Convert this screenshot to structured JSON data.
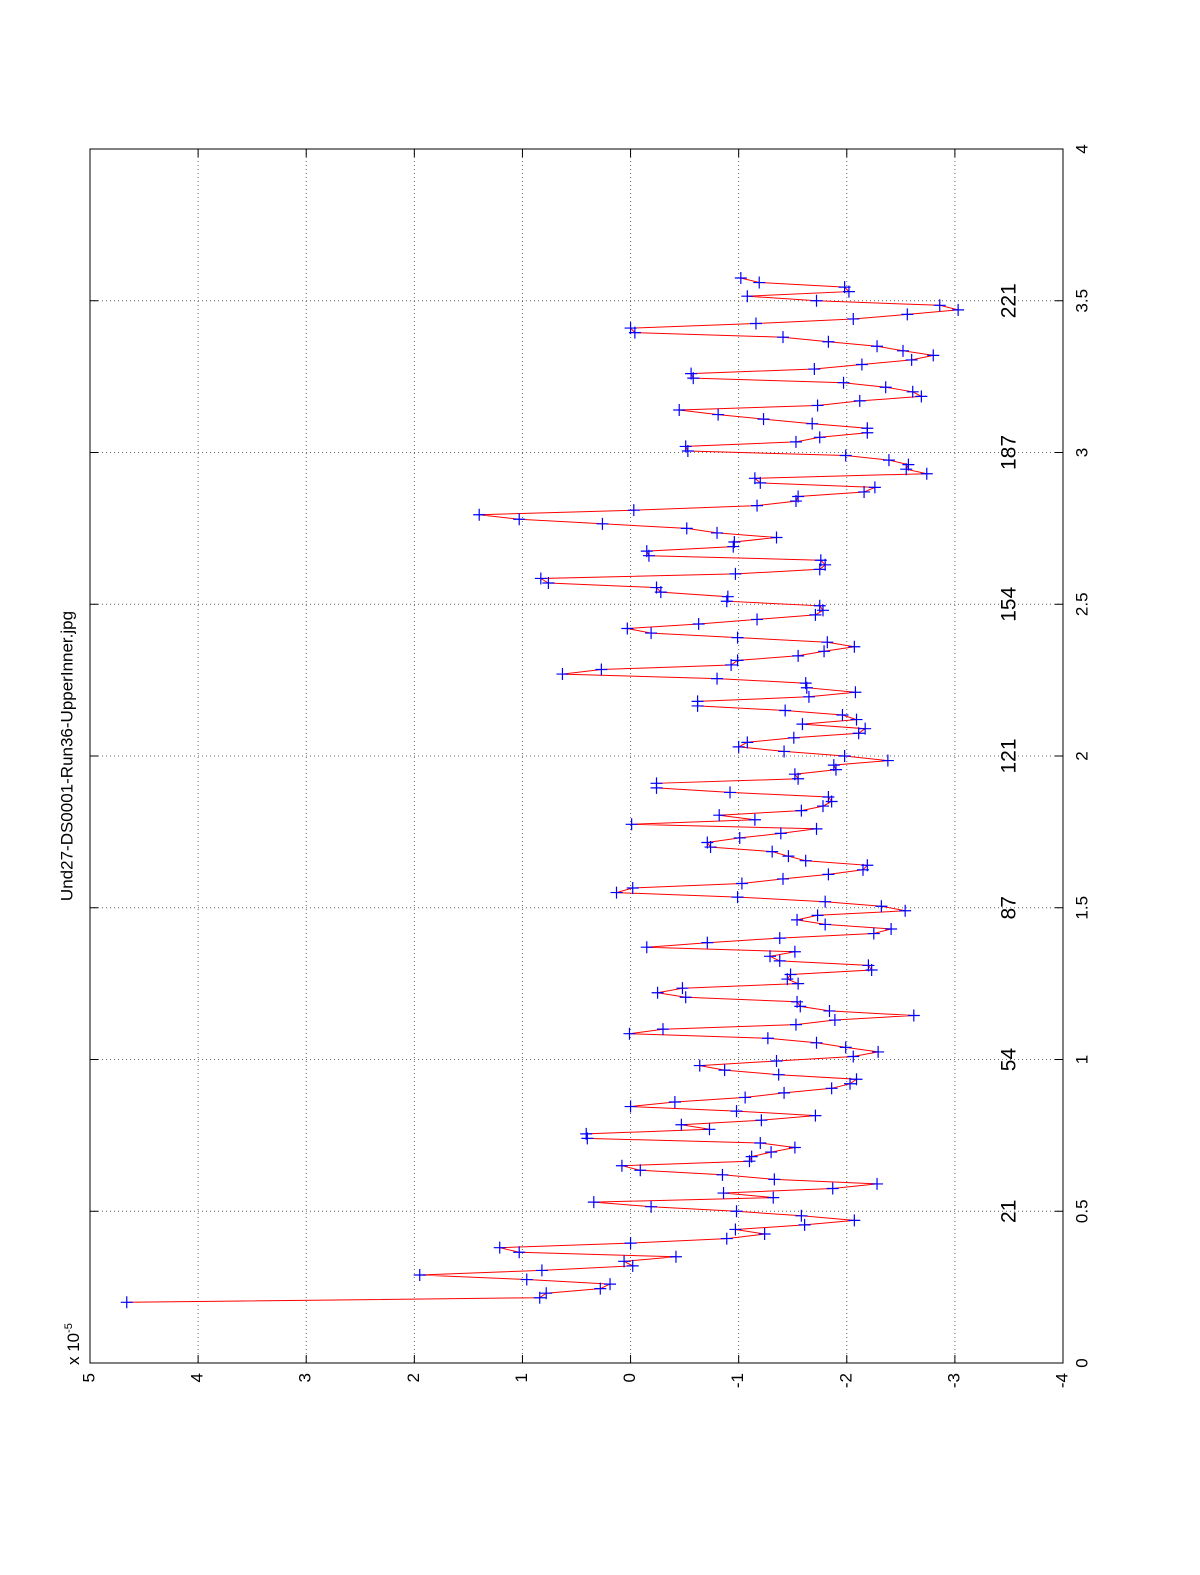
{
  "chart_data": {
    "type": "line",
    "title": "Und27-DS0001-Run36-UpperInner.jpg",
    "y_multiplier": "x 10",
    "y_exponent": "-5",
    "xlim": [
      0,
      4
    ],
    "xticks": [
      0,
      0.5,
      1,
      1.5,
      2,
      2.5,
      3,
      3.5,
      4
    ],
    "ylim": [
      -4,
      5
    ],
    "yticks": [
      5,
      4,
      3,
      2,
      1,
      0,
      -1,
      -2,
      -3,
      -4
    ],
    "grid": true,
    "line_color": "#ff0000",
    "marker_color": "#0000ff",
    "marker": "+",
    "annotations": [
      {
        "text": "21",
        "x": 0.5
      },
      {
        "text": "54",
        "x": 1
      },
      {
        "text": "87",
        "x": 1.5
      },
      {
        "text": "121",
        "x": 2
      },
      {
        "text": "154",
        "x": 2.5
      },
      {
        "text": "187",
        "x": 3
      },
      {
        "text": "221",
        "x": 3.5
      }
    ],
    "x": [
      0.2,
      0.215,
      0.23,
      0.245,
      0.26,
      0.275,
      0.29,
      0.305,
      0.32,
      0.335,
      0.35,
      0.365,
      0.38,
      0.395,
      0.41,
      0.425,
      0.44,
      0.455,
      0.47,
      0.485,
      0.5,
      0.515,
      0.53,
      0.545,
      0.56,
      0.575,
      0.59,
      0.605,
      0.62,
      0.635,
      0.65,
      0.665,
      0.68,
      0.695,
      0.71,
      0.725,
      0.74,
      0.755,
      0.77,
      0.785,
      0.8,
      0.815,
      0.83,
      0.845,
      0.86,
      0.875,
      0.89,
      0.905,
      0.92,
      0.935,
      0.95,
      0.965,
      0.98,
      0.995,
      1.01,
      1.025,
      1.04,
      1.055,
      1.07,
      1.085,
      1.1,
      1.115,
      1.13,
      1.145,
      1.16,
      1.175,
      1.19,
      1.205,
      1.22,
      1.235,
      1.25,
      1.265,
      1.28,
      1.295,
      1.31,
      1.325,
      1.34,
      1.355,
      1.37,
      1.385,
      1.4,
      1.415,
      1.43,
      1.445,
      1.46,
      1.475,
      1.49,
      1.505,
      1.52,
      1.535,
      1.55,
      1.565,
      1.58,
      1.595,
      1.61,
      1.625,
      1.64,
      1.655,
      1.67,
      1.685,
      1.7,
      1.715,
      1.73,
      1.745,
      1.76,
      1.775,
      1.79,
      1.805,
      1.82,
      1.835,
      1.85,
      1.865,
      1.88,
      1.895,
      1.91,
      1.925,
      1.94,
      1.955,
      1.97,
      1.985,
      2,
      2.015,
      2.03,
      2.045,
      2.06,
      2.075,
      2.09,
      2.105,
      2.12,
      2.135,
      2.15,
      2.165,
      2.18,
      2.195,
      2.21,
      2.225,
      2.24,
      2.255,
      2.27,
      2.285,
      2.3,
      2.315,
      2.33,
      2.345,
      2.36,
      2.375,
      2.39,
      2.405,
      2.42,
      2.435,
      2.45,
      2.465,
      2.48,
      2.495,
      2.51,
      2.525,
      2.54,
      2.555,
      2.57,
      2.585,
      2.6,
      2.615,
      2.63,
      2.645,
      2.66,
      2.675,
      2.69,
      2.705,
      2.72,
      2.735,
      2.75,
      2.765,
      2.78,
      2.795,
      2.81,
      2.825,
      2.84,
      2.855,
      2.87,
      2.885,
      2.9,
      2.915,
      2.93,
      2.945,
      2.96,
      2.975,
      2.99,
      3.005,
      3.02,
      3.035,
      3.05,
      3.065,
      3.08,
      3.095,
      3.11,
      3.125,
      3.14,
      3.155,
      3.17,
      3.185,
      3.2,
      3.215,
      3.23,
      3.245,
      3.26,
      3.275,
      3.29,
      3.305,
      3.32,
      3.335,
      3.35,
      3.365,
      3.38,
      3.395,
      3.41,
      3.425,
      3.44,
      3.455,
      3.47,
      3.485,
      3.5,
      3.515,
      3.53,
      3.545,
      3.56,
      3.575
    ],
    "values": [
      4.66,
      0.84,
      0.78,
      0.28,
      0.19,
      0.96,
      1.95,
      0.82,
      -0.02,
      0.06,
      -0.42,
      1.03,
      1.21,
      0.0,
      -0.89,
      -1.24,
      -0.97,
      -1.61,
      -2.07,
      -1.58,
      -0.98,
      -0.19,
      0.34,
      -1.32,
      -0.86,
      -1.87,
      -2.28,
      -1.33,
      -0.85,
      -0.09,
      0.08,
      -1.1,
      -1.12,
      -1.3,
      -1.52,
      -1.2,
      0.4,
      0.41,
      -0.73,
      -0.47,
      -1.21,
      -1.71,
      -0.98,
      0.0,
      -0.41,
      -1.06,
      -1.42,
      -1.86,
      -2.03,
      -2.09,
      -1.37,
      -0.87,
      -0.64,
      -1.35,
      -2.06,
      -2.29,
      -1.99,
      -1.72,
      -1.27,
      0.01,
      -0.3,
      -1.53,
      -1.89,
      -2.62,
      -1.84,
      -1.57,
      -1.54,
      -0.51,
      -0.25,
      -0.48,
      -1.55,
      -1.45,
      -1.48,
      -2.23,
      -2.2,
      -1.38,
      -1.29,
      -1.52,
      -0.15,
      -0.71,
      -1.38,
      -2.25,
      -2.41,
      -1.8,
      -1.54,
      -1.73,
      -2.54,
      -2.32,
      -1.8,
      -0.99,
      0.13,
      -0.02,
      -1.03,
      -1.41,
      -1.83,
      -2.15,
      -2.19,
      -1.62,
      -1.46,
      -1.31,
      -0.74,
      -0.71,
      -1.01,
      -1.39,
      -1.72,
      -0.01,
      -1.15,
      -0.82,
      -1.58,
      -1.78,
      -1.86,
      -1.83,
      -0.92,
      -0.24,
      -0.24,
      -1.55,
      -1.52,
      -1.9,
      -1.88,
      -2.38,
      -1.98,
      -1.42,
      -1.0,
      -1.08,
      -1.51,
      -2.11,
      -2.17,
      -1.59,
      -2.09,
      -1.96,
      -1.43,
      -0.62,
      -0.62,
      -1.65,
      -2.08,
      -1.63,
      -1.62,
      -0.8,
      0.63,
      0.27,
      -0.93,
      -0.99,
      -1.55,
      -1.79,
      -2.07,
      -1.82,
      -0.99,
      -0.19,
      0.03,
      -0.63,
      -1.17,
      -1.71,
      -1.78,
      -1.75,
      -0.89,
      -0.9,
      -0.28,
      -0.24,
      0.76,
      0.83,
      -0.97,
      -1.75,
      -1.8,
      -1.76,
      -0.17,
      -0.15,
      -0.95,
      -0.96,
      -1.35,
      -0.8,
      -0.52,
      0.26,
      1.03,
      1.4,
      -0.03,
      -1.17,
      -1.53,
      -1.55,
      -2.16,
      -2.26,
      -1.2,
      -1.15,
      -2.74,
      -2.55,
      -2.57,
      -2.39,
      -1.99,
      -0.53,
      -0.51,
      -1.53,
      -1.75,
      -2.19,
      -2.19,
      -1.68,
      -1.23,
      -0.81,
      -0.45,
      -1.73,
      -2.12,
      -2.69,
      -2.61,
      -2.36,
      -1.97,
      -0.58,
      -0.56,
      -1.7,
      -2.14,
      -2.6,
      -2.8,
      -2.52,
      -2.28,
      -1.83,
      -1.41,
      -0.04,
      0.0,
      -1.16,
      -2.06,
      -2.56,
      -3.03,
      -2.86,
      -1.72,
      -1.08,
      -2.02,
      -1.98,
      -1.19,
      -1.02
    ]
  }
}
